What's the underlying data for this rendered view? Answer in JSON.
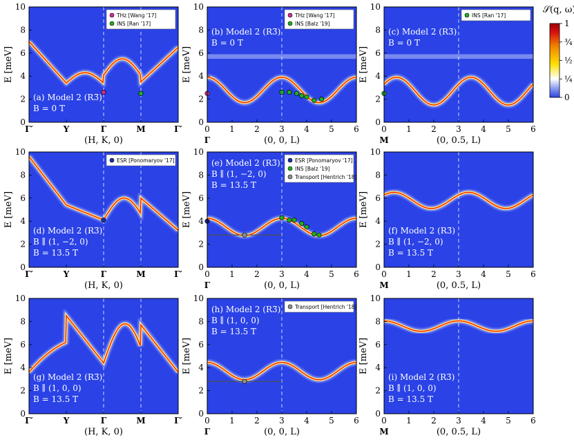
{
  "figure": {
    "colorbar": {
      "title": "𝒮(q, ω)",
      "ticks": [
        {
          "value": 0,
          "label": "0"
        },
        {
          "value": 0.25,
          "label": "¼"
        },
        {
          "value": 0.5,
          "label": "½"
        },
        {
          "value": 0.75,
          "label": "¾"
        },
        {
          "value": 1,
          "label": "1"
        }
      ],
      "colors": [
        "#2a42e6",
        "#ffffff",
        "#ffe000",
        "#f09000",
        "#d81010",
        "#b00000"
      ]
    },
    "ylabel": "E [meV]",
    "colors": {
      "background": "#2a42e6",
      "band": "#ffe47a",
      "band_core": "#ff2000",
      "dashed": "#ffffff"
    }
  },
  "chart_data": [
    {
      "id": "a",
      "type": "heatmap",
      "x_axis": "path",
      "xlabel": "(H, K, 0)",
      "xticks": [
        "Γ′",
        "Y",
        "Γ",
        "M",
        "Γ′"
      ],
      "ylim": [
        0,
        10
      ],
      "yticks": [
        0,
        2,
        4,
        6,
        8,
        10
      ],
      "label_lines": [
        "(a)  Model 2 (R3̄)",
        "B = 0 T"
      ],
      "legend": [
        {
          "name": "THz [Wang '17]",
          "color": "#d03090"
        },
        {
          "name": "INS [Ran '17]",
          "color": "#20b020"
        }
      ],
      "points": [
        {
          "series": "THz [Wang '17]",
          "x": 2.0,
          "y": 2.6
        },
        {
          "series": "INS [Ran '17]",
          "x": 3.0,
          "y": 2.5
        }
      ]
    },
    {
      "id": "b",
      "type": "heatmap",
      "x_axis": "linear",
      "xlabel": "(0, 0, L)",
      "xlim": [
        0,
        6
      ],
      "xticks": [
        "0",
        "1",
        "2",
        "3",
        "4",
        "5",
        "6"
      ],
      "xfirst_symbol": "Γ",
      "ylim": [
        0,
        10
      ],
      "yticks": [
        0,
        2,
        4,
        6,
        8,
        10
      ],
      "label_lines": [
        "(b)  Model 2 (R3̄)",
        "B = 0 T"
      ],
      "legend": [
        {
          "name": "THz [Wang '17]",
          "color": "#d03090"
        },
        {
          "name": "INS [Balz '19]",
          "color": "#20b020"
        }
      ],
      "points": [
        {
          "series": "THz [Wang '17]",
          "x": 0.0,
          "y": 2.5
        },
        {
          "series": "INS [Balz '19]",
          "x": 3.0,
          "y": 2.6
        },
        {
          "series": "INS [Balz '19]",
          "x": 3.3,
          "y": 2.6
        },
        {
          "series": "INS [Balz '19]",
          "x": 3.6,
          "y": 2.5
        },
        {
          "series": "INS [Balz '19]",
          "x": 3.8,
          "y": 2.3
        },
        {
          "series": "INS [Balz '19]",
          "x": 4.0,
          "y": 2.2
        },
        {
          "series": "INS [Balz '19]",
          "x": 4.3,
          "y": 1.9
        },
        {
          "series": "INS [Balz '19]",
          "x": 4.6,
          "y": 2.0
        }
      ]
    },
    {
      "id": "c",
      "type": "heatmap",
      "x_axis": "linear",
      "xlabel": "(0, 0.5, L)",
      "xlim": [
        0,
        6
      ],
      "xticks": [
        "0",
        "1",
        "2",
        "3",
        "4",
        "5",
        "6"
      ],
      "xfirst_symbol": "M",
      "ylim": [
        0,
        10
      ],
      "yticks": [
        0,
        2,
        4,
        6,
        8,
        10
      ],
      "label_lines": [
        "(c)  Model 2 (R3̄)",
        "B = 0 T"
      ],
      "legend": [
        {
          "name": "INS [Ran '17]",
          "color": "#20b020"
        }
      ],
      "points": [
        {
          "series": "INS [Ran '17]",
          "x": 0.0,
          "y": 2.5
        }
      ]
    },
    {
      "id": "d",
      "type": "heatmap",
      "x_axis": "path",
      "xlabel": "(H, K, 0)",
      "xticks": [
        "Γ′",
        "Y",
        "Γ",
        "M",
        "Γ′"
      ],
      "ylim": [
        0,
        10
      ],
      "yticks": [
        0,
        2,
        4,
        6,
        8,
        10
      ],
      "label_lines": [
        "(d)  Model 2 (R3̄)",
        "B ∥ (1, −2, 0)",
        "B = 13.5 T"
      ],
      "legend": [
        {
          "name": "ESR [Ponomaryov '17]",
          "color": "#1830b0"
        }
      ],
      "points": [
        {
          "series": "ESR [Ponomaryov '17]",
          "x": 2.0,
          "y": 4.1
        }
      ]
    },
    {
      "id": "e",
      "type": "heatmap",
      "x_axis": "linear",
      "xlabel": "(0, 0, L)",
      "xlim": [
        0,
        6
      ],
      "xticks": [
        "0",
        "1",
        "2",
        "3",
        "4",
        "5",
        "6"
      ],
      "xfirst_symbol": "Γ",
      "ylim": [
        0,
        10
      ],
      "yticks": [
        0,
        2,
        4,
        6,
        8,
        10
      ],
      "label_lines": [
        "(e)  Model 2 (R3̄)",
        "B ∥ (1, −2, 0)",
        "B = 13.5 T"
      ],
      "legend": [
        {
          "name": "ESR [Ponomaryov '17]",
          "color": "#1830b0"
        },
        {
          "name": "INS [Balz '19]",
          "color": "#20b020"
        },
        {
          "name": "Transport [Hentrich '18]",
          "color": "#909090"
        }
      ],
      "points": [
        {
          "series": "ESR [Ponomaryov '17]",
          "x": 0.0,
          "y": 4.0
        },
        {
          "series": "Transport [Hentrich '18]",
          "x": 1.5,
          "y": 2.8
        },
        {
          "series": "INS [Balz '19]",
          "x": 3.0,
          "y": 4.3
        },
        {
          "series": "INS [Balz '19]",
          "x": 3.3,
          "y": 4.1
        },
        {
          "series": "INS [Balz '19]",
          "x": 3.5,
          "y": 4.1
        },
        {
          "series": "INS [Balz '19]",
          "x": 3.8,
          "y": 3.8
        },
        {
          "series": "INS [Balz '19]",
          "x": 4.0,
          "y": 3.5
        },
        {
          "series": "INS [Balz '19]",
          "x": 4.3,
          "y": 2.9
        },
        {
          "series": "INS [Balz '19]",
          "x": 4.5,
          "y": 2.8
        }
      ]
    },
    {
      "id": "f",
      "type": "heatmap",
      "x_axis": "linear",
      "xlabel": "(0, 0.5, L)",
      "xlim": [
        0,
        6
      ],
      "xticks": [
        "0",
        "1",
        "2",
        "3",
        "4",
        "5",
        "6"
      ],
      "xfirst_symbol": "M",
      "ylim": [
        0,
        10
      ],
      "yticks": [
        0,
        2,
        4,
        6,
        8,
        10
      ],
      "label_lines": [
        "(f)  Model 2 (R3̄)",
        "B ∥ (1, −2, 0)",
        "B = 13.5 T"
      ],
      "legend": [],
      "points": []
    },
    {
      "id": "g",
      "type": "heatmap",
      "x_axis": "path",
      "xlabel": "(H, K, 0)",
      "xticks": [
        "Γ′",
        "Y",
        "Γ",
        "M",
        "Γ′"
      ],
      "ylim": [
        0,
        10
      ],
      "yticks": [
        0,
        2,
        4,
        6,
        8,
        10
      ],
      "label_lines": [
        "(g)  Model 2 (R3̄)",
        "B ∥ (1, 0, 0)",
        "B = 13.5 T"
      ],
      "legend": [],
      "points": []
    },
    {
      "id": "h",
      "type": "heatmap",
      "x_axis": "linear",
      "xlabel": "(0, 0, L)",
      "xlim": [
        0,
        6
      ],
      "xticks": [
        "0",
        "1",
        "2",
        "3",
        "4",
        "5",
        "6"
      ],
      "xfirst_symbol": "Γ",
      "ylim": [
        0,
        10
      ],
      "yticks": [
        0,
        2,
        4,
        6,
        8,
        10
      ],
      "label_lines": [
        "(h)  Model 2 (R3̄)",
        "B ∥ (1, 0, 0)",
        "B = 13.5 T"
      ],
      "legend": [
        {
          "name": "Transport [Hentrich '18]",
          "color": "#909090"
        }
      ],
      "points": [
        {
          "series": "Transport [Hentrich '18]",
          "x": 1.5,
          "y": 2.8
        }
      ]
    },
    {
      "id": "i",
      "type": "heatmap",
      "x_axis": "linear",
      "xlabel": "(0, 0.5, L)",
      "xlim": [
        0,
        6
      ],
      "xticks": [
        "0",
        "1",
        "2",
        "3",
        "4",
        "5",
        "6"
      ],
      "xfirst_symbol": "M",
      "ylim": [
        0,
        10
      ],
      "yticks": [
        0,
        2,
        4,
        6,
        8,
        10
      ],
      "label_lines": [
        "(i)  Model 2 (R3̄)",
        "B ∥ (1, 0, 0)",
        "B = 13.5 T"
      ],
      "legend": [],
      "points": []
    }
  ]
}
